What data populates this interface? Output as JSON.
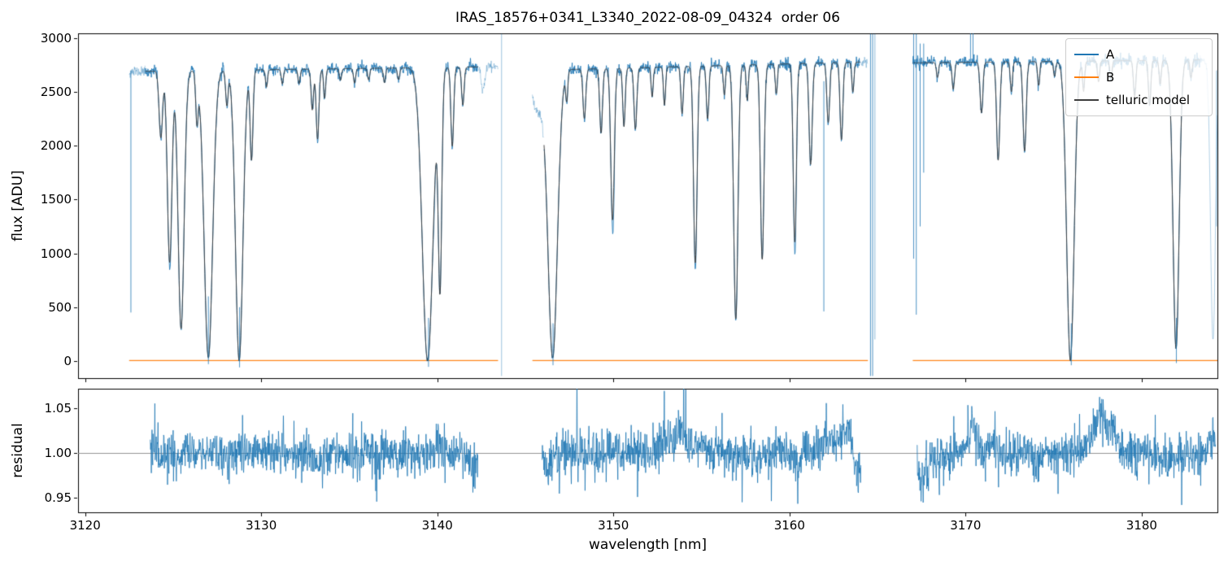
{
  "chart_data": {
    "type": "line",
    "title": "IRAS_18576+0341_L3340_2022-08-09_04324  order 06",
    "xlabel": "wavelength [nm]",
    "xlim": [
      3119.6,
      3184.3
    ],
    "xticks": [
      3120,
      3130,
      3140,
      3150,
      3160,
      3170,
      3180
    ],
    "legend_position": "upper right",
    "top_panel": {
      "ylabel": "flux [ADU]",
      "ylim": [
        -160,
        3045
      ],
      "yticks": [
        0,
        500,
        1000,
        1500,
        2000,
        2500,
        3000
      ],
      "series": [
        {
          "name": "A",
          "color": "#1f77b4"
        },
        {
          "name": "B",
          "color": "#ff7f0e"
        },
        {
          "name": "telluric model",
          "color": "#3d3d3d"
        }
      ],
      "b_level_adu": 3,
      "segments": [
        {
          "range": [
            3122.5,
            3143.45
          ],
          "continuum": [
            2690,
            2735
          ]
        },
        {
          "range": [
            3145.4,
            3164.45
          ],
          "continuum": [
            2700,
            2780
          ]
        },
        {
          "range": [
            3167.0,
            3184.3
          ],
          "continuum": [
            2770,
            2800
          ]
        }
      ],
      "faded_ranges": [
        [
          3122.5,
          3123.4
        ],
        [
          3142.3,
          3143.45
        ],
        [
          3145.4,
          3146.05
        ],
        [
          3164.0,
          3164.45
        ],
        [
          3183.3,
          3184.3
        ]
      ],
      "absorption_lines_format": [
        "center_nm",
        "depth_fraction_of_continuum",
        "sigma_nm"
      ],
      "absorption_lines": [
        [
          3124.3,
          0.23,
          0.1
        ],
        [
          3124.8,
          0.66,
          0.13
        ],
        [
          3125.45,
          0.89,
          0.17
        ],
        [
          3126.35,
          0.17,
          0.07
        ],
        [
          3127.0,
          0.99,
          0.24
        ],
        [
          3128.05,
          0.12,
          0.07
        ],
        [
          3128.75,
          1.0,
          0.21
        ],
        [
          3129.45,
          0.31,
          0.08
        ],
        [
          3130.3,
          0.06,
          0.06
        ],
        [
          3131.2,
          0.05,
          0.06
        ],
        [
          3132.15,
          0.05,
          0.06
        ],
        [
          3132.9,
          0.14,
          0.07
        ],
        [
          3133.2,
          0.24,
          0.08
        ],
        [
          3133.6,
          0.1,
          0.06
        ],
        [
          3134.5,
          0.04,
          0.06
        ],
        [
          3135.3,
          0.05,
          0.06
        ],
        [
          3136.1,
          0.04,
          0.06
        ],
        [
          3137.0,
          0.05,
          0.06
        ],
        [
          3137.8,
          0.04,
          0.06
        ],
        [
          3139.45,
          1.0,
          0.3
        ],
        [
          3140.15,
          0.76,
          0.1
        ],
        [
          3140.85,
          0.27,
          0.08
        ],
        [
          3141.45,
          0.13,
          0.07
        ],
        [
          3142.6,
          0.08,
          0.1
        ],
        [
          3145.7,
          0.14,
          0.35
        ],
        [
          3146.55,
          0.99,
          0.27
        ],
        [
          3147.35,
          0.1,
          0.06
        ],
        [
          3148.35,
          0.17,
          0.08
        ],
        [
          3149.3,
          0.22,
          0.08
        ],
        [
          3149.95,
          0.52,
          0.1
        ],
        [
          3150.6,
          0.2,
          0.07
        ],
        [
          3151.25,
          0.21,
          0.08
        ],
        [
          3152.2,
          0.1,
          0.06
        ],
        [
          3152.9,
          0.13,
          0.06
        ],
        [
          3153.9,
          0.16,
          0.07
        ],
        [
          3154.65,
          0.67,
          0.1
        ],
        [
          3155.35,
          0.18,
          0.07
        ],
        [
          3156.3,
          0.1,
          0.06
        ],
        [
          3156.95,
          0.86,
          0.12
        ],
        [
          3157.6,
          0.12,
          0.06
        ],
        [
          3158.45,
          0.66,
          0.1
        ],
        [
          3159.25,
          0.1,
          0.06
        ],
        [
          3160.3,
          0.6,
          0.09
        ],
        [
          3161.2,
          0.34,
          0.09
        ],
        [
          3162.2,
          0.2,
          0.08
        ],
        [
          3162.95,
          0.26,
          0.08
        ],
        [
          3163.6,
          0.1,
          0.06
        ],
        [
          3168.4,
          0.05,
          0.06
        ],
        [
          3169.3,
          0.09,
          0.07
        ],
        [
          3170.9,
          0.17,
          0.08
        ],
        [
          3171.85,
          0.33,
          0.09
        ],
        [
          3172.6,
          0.1,
          0.06
        ],
        [
          3173.35,
          0.3,
          0.09
        ],
        [
          3174.15,
          0.08,
          0.06
        ],
        [
          3175.05,
          0.05,
          0.06
        ],
        [
          3175.95,
          1.0,
          0.21
        ],
        [
          3176.7,
          0.1,
          0.06
        ],
        [
          3177.55,
          0.07,
          0.06
        ],
        [
          3178.25,
          0.06,
          0.06
        ],
        [
          3179.6,
          0.12,
          0.07
        ],
        [
          3180.45,
          0.15,
          0.07
        ],
        [
          3181.05,
          0.08,
          0.06
        ],
        [
          3181.95,
          0.96,
          0.17
        ],
        [
          3182.8,
          0.06,
          0.06
        ],
        [
          3184.05,
          0.93,
          0.14
        ]
      ],
      "a_only_lines": [
        [
          3124.85,
          0.1,
          0.05
        ],
        [
          3139.8,
          0.08,
          0.05
        ],
        [
          3146.6,
          0.05,
          0.05
        ],
        [
          3150.0,
          0.12,
          0.05
        ],
        [
          3154.67,
          0.08,
          0.04
        ],
        [
          3157.0,
          0.06,
          0.05
        ],
        [
          3160.33,
          0.12,
          0.05
        ],
        [
          3176.0,
          0.06,
          0.06
        ],
        [
          3182.0,
          0.06,
          0.05
        ]
      ],
      "noise_spikes_format": [
        "nm",
        "flux_low_adu",
        "flux_high_adu",
        "optional_alpha"
      ],
      "noise_spikes": [
        [
          3122.6,
          450,
          2700
        ],
        [
          3127.0,
          -30,
          600
        ],
        [
          3128.77,
          -60,
          500
        ],
        [
          3139.5,
          -55,
          400
        ],
        [
          3143.65,
          -140,
          3040,
          0.45
        ],
        [
          3146.57,
          -40,
          350
        ],
        [
          3161.95,
          460,
          2600
        ],
        [
          3164.6,
          -140,
          3040
        ],
        [
          3164.72,
          -140,
          3040
        ],
        [
          3164.85,
          200,
          3040,
          0.5
        ],
        [
          3167.05,
          950,
          3040
        ],
        [
          3167.2,
          430,
          3040
        ],
        [
          3167.42,
          1250,
          2950
        ],
        [
          3167.62,
          1750,
          2950
        ],
        [
          3170.28,
          2770,
          3052
        ],
        [
          3170.42,
          2770,
          3048
        ],
        [
          3176.0,
          -40,
          350
        ],
        [
          3181.97,
          -20,
          400
        ],
        [
          3184.25,
          1250,
          2700,
          0.5
        ]
      ],
      "noise": {
        "fractional_sigma": 0.009,
        "floor_sigma_adu": 9
      }
    },
    "bottom_panel": {
      "ylabel": "residual",
      "ylim": [
        0.934,
        1.072
      ],
      "yticks": [
        0.95,
        1.0,
        1.05
      ],
      "ytick_labels": [
        "0.95",
        "1.00",
        "1.05"
      ],
      "baseline": 1.0,
      "noise_sigma": 0.012,
      "ranges": [
        [
          3123.7,
          3142.3
        ],
        [
          3145.95,
          3164.05
        ],
        [
          3167.25,
          3184.2
        ]
      ],
      "bumps_format": [
        "center_nm",
        "amplitude",
        "sigma_nm"
      ],
      "bumps": [
        [
          3133.2,
          -0.015,
          0.2
        ],
        [
          3140.0,
          0.01,
          0.25
        ],
        [
          3142.0,
          -0.012,
          0.3
        ],
        [
          3146.3,
          -0.015,
          0.2
        ],
        [
          3152.9,
          0.012,
          0.5
        ],
        [
          3153.9,
          0.02,
          0.4
        ],
        [
          3155.0,
          0.012,
          0.3
        ],
        [
          3158.0,
          -0.01,
          0.3
        ],
        [
          3160.4,
          -0.012,
          0.2
        ],
        [
          3162.1,
          0.012,
          0.4
        ],
        [
          3163.25,
          0.032,
          0.3
        ],
        [
          3163.85,
          -0.028,
          0.2
        ],
        [
          3167.45,
          -0.03,
          0.25
        ],
        [
          3168.0,
          -0.012,
          0.3
        ],
        [
          3170.35,
          0.03,
          0.25
        ],
        [
          3171.6,
          0.012,
          0.3
        ],
        [
          3174.0,
          -0.01,
          0.3
        ],
        [
          3177.65,
          0.038,
          0.45
        ],
        [
          3178.4,
          0.018,
          0.3
        ],
        [
          3181.5,
          -0.012,
          0.3
        ],
        [
          3184.15,
          0.018,
          0.25
        ]
      ]
    }
  }
}
